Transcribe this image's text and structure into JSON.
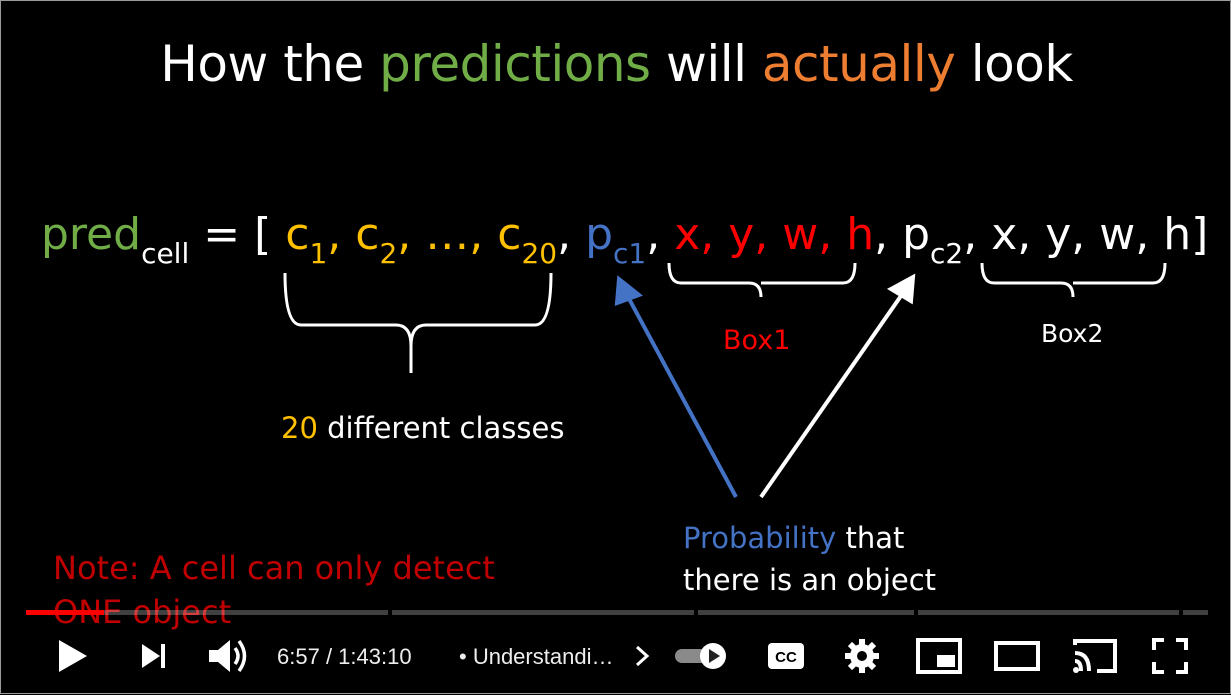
{
  "slide": {
    "title_part1": "How the ",
    "title_part2": "predictions",
    "title_part3": " will ",
    "title_part4": "actually",
    "title_part5": " look",
    "formula": {
      "pred": "pred",
      "pred_sub": "cell",
      "eq_open": " = [ ",
      "c1": "c",
      "c1_sub": "1",
      "sep1": ", ",
      "c2": "c",
      "c2_sub": "2",
      "ellipsis": ", …, ",
      "c20": "c",
      "c20_sub": "20",
      "comma_a": ", ",
      "p1": "p",
      "p1_sub": "c1",
      "comma_b": ", ",
      "box1_vals": "x, y, w, h",
      "comma_c": ", ",
      "p2": "p",
      "p2_sub": "c2",
      "comma_d": ", ",
      "box2_vals": "x, y, w, h]"
    },
    "classes_count": "20",
    "classes_label": " different classes",
    "box1_label": "Box1",
    "box2_label": "Box2",
    "prob_word": "Probability",
    "prob_rest_line1": " that",
    "prob_line2": "there is an object",
    "note_line1": "Note: A cell can only detect",
    "note_line2": "ONE object",
    "colors": {
      "green": "#70ad47",
      "orange": "#ed7d31",
      "yellow": "#ffc000",
      "blue": "#4472c4",
      "red": "#ff0000"
    }
  },
  "player": {
    "progress_fraction": 0.066,
    "time_current": "6:57",
    "time_separator": " / ",
    "time_total": "1:43:10",
    "chapter_bullet": "•",
    "chapter_title": "Understandi…",
    "icons": {
      "play": "play-icon",
      "next": "next-icon",
      "volume": "volume-icon",
      "chevron": "chevron-right-icon",
      "autoplay": "autoplay-toggle-icon",
      "cc": "cc-icon",
      "settings": "gear-icon",
      "miniplayer": "miniplayer-icon",
      "theater": "theater-mode-icon",
      "cast": "cast-icon",
      "fullscreen": "fullscreen-icon"
    },
    "cc_label": "CC"
  }
}
